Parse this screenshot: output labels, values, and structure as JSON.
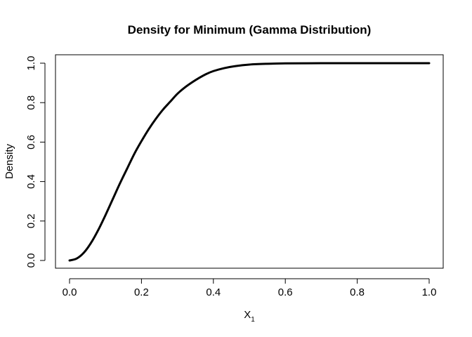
{
  "chart_data": {
    "type": "line",
    "title": "Density for Minimum (Gamma Distribution)",
    "xlabel": "X",
    "xlabel_subscript": "1",
    "ylabel": "Density",
    "xlim": [
      0,
      1
    ],
    "ylim": [
      0,
      1
    ],
    "x_ticks": [
      "0.0",
      "0.2",
      "0.4",
      "0.6",
      "0.8",
      "1.0"
    ],
    "y_ticks": [
      "0.0",
      "0.2",
      "0.4",
      "0.6",
      "0.8",
      "1.0"
    ],
    "grid": false,
    "line_color": "#000000",
    "series": [
      {
        "x": [
          0.0,
          0.02,
          0.04,
          0.06,
          0.08,
          0.1,
          0.12,
          0.14,
          0.16,
          0.18,
          0.2,
          0.22,
          0.24,
          0.26,
          0.28,
          0.3,
          0.32,
          0.34,
          0.36,
          0.38,
          0.4,
          0.43,
          0.46,
          0.5,
          0.55,
          0.6,
          0.7,
          0.8,
          0.9,
          1.0
        ],
        "y": [
          0.0,
          0.01,
          0.04,
          0.09,
          0.155,
          0.23,
          0.31,
          0.39,
          0.465,
          0.54,
          0.605,
          0.665,
          0.718,
          0.765,
          0.805,
          0.845,
          0.876,
          0.902,
          0.925,
          0.945,
          0.96,
          0.975,
          0.985,
          0.993,
          0.997,
          0.999,
          1.0,
          1.0,
          1.0,
          1.0
        ]
      }
    ]
  }
}
